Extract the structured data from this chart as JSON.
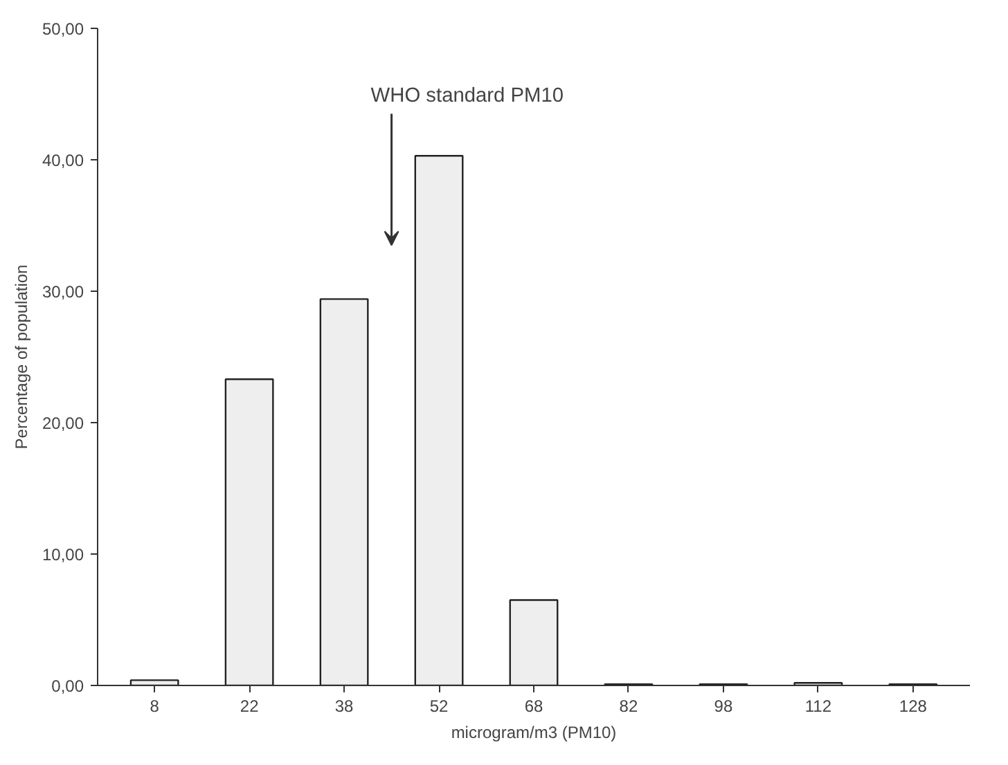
{
  "chart_data": {
    "type": "bar",
    "xlabel": "microgram/m3 (PM10)",
    "ylabel": "Percentage of population",
    "categories": [
      "8",
      "22",
      "38",
      "52",
      "68",
      "82",
      "98",
      "112",
      "128"
    ],
    "values": [
      0.4,
      23.3,
      29.4,
      40.3,
      6.5,
      0.1,
      0.1,
      0.2,
      0.1
    ],
    "color": "#eeeeee",
    "ylim": [
      0,
      50
    ],
    "yticks": [
      {
        "value": 0,
        "label": "0,00"
      },
      {
        "value": 10,
        "label": "10,00"
      },
      {
        "value": 20,
        "label": "20,00"
      },
      {
        "value": 30,
        "label": "30,00"
      },
      {
        "value": 40,
        "label": "40,00"
      },
      {
        "value": 50,
        "label": "50,00"
      }
    ],
    "annotations": [
      "WHO standard PM10"
    ],
    "grid": false
  }
}
